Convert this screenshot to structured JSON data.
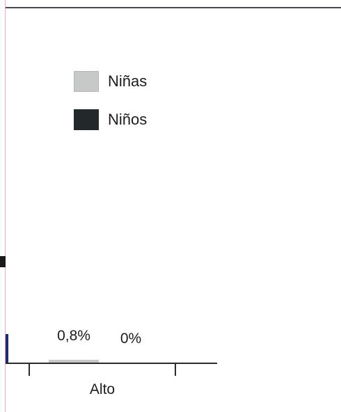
{
  "chart_data": {
    "type": "bar",
    "categories": [
      "Alto"
    ],
    "series": [
      {
        "name": "Niñas",
        "values": [
          0.8
        ],
        "data_labels": [
          "0,8%"
        ],
        "color": "#c7c9c8"
      },
      {
        "name": "Niños",
        "values": [
          0.0
        ],
        "data_labels": [
          "0%"
        ],
        "color": "#23282b"
      }
    ],
    "legend_position": "top-left",
    "grid": false
  }
}
